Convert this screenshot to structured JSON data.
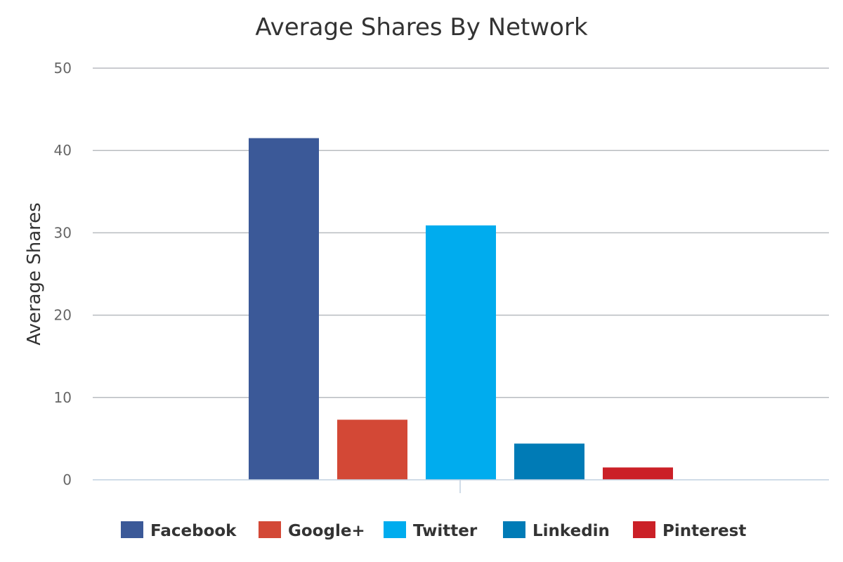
{
  "chart_data": {
    "type": "bar",
    "title": "Average Shares By Network",
    "xlabel": "",
    "ylabel": "Average Shares",
    "ylim": [
      0,
      50
    ],
    "yticks": [
      0,
      10,
      20,
      30,
      40,
      50
    ],
    "grid": true,
    "legend_position": "bottom",
    "series": [
      {
        "name": "Facebook",
        "value": 41.5,
        "color": "#3b5998"
      },
      {
        "name": "Google+",
        "value": 7.3,
        "color": "#d34836"
      },
      {
        "name": "Twitter",
        "value": 30.9,
        "color": "#00acee"
      },
      {
        "name": "Linkedin",
        "value": 4.4,
        "color": "#007bb6"
      },
      {
        "name": "Pinterest",
        "value": 1.5,
        "color": "#cb2027"
      }
    ]
  }
}
